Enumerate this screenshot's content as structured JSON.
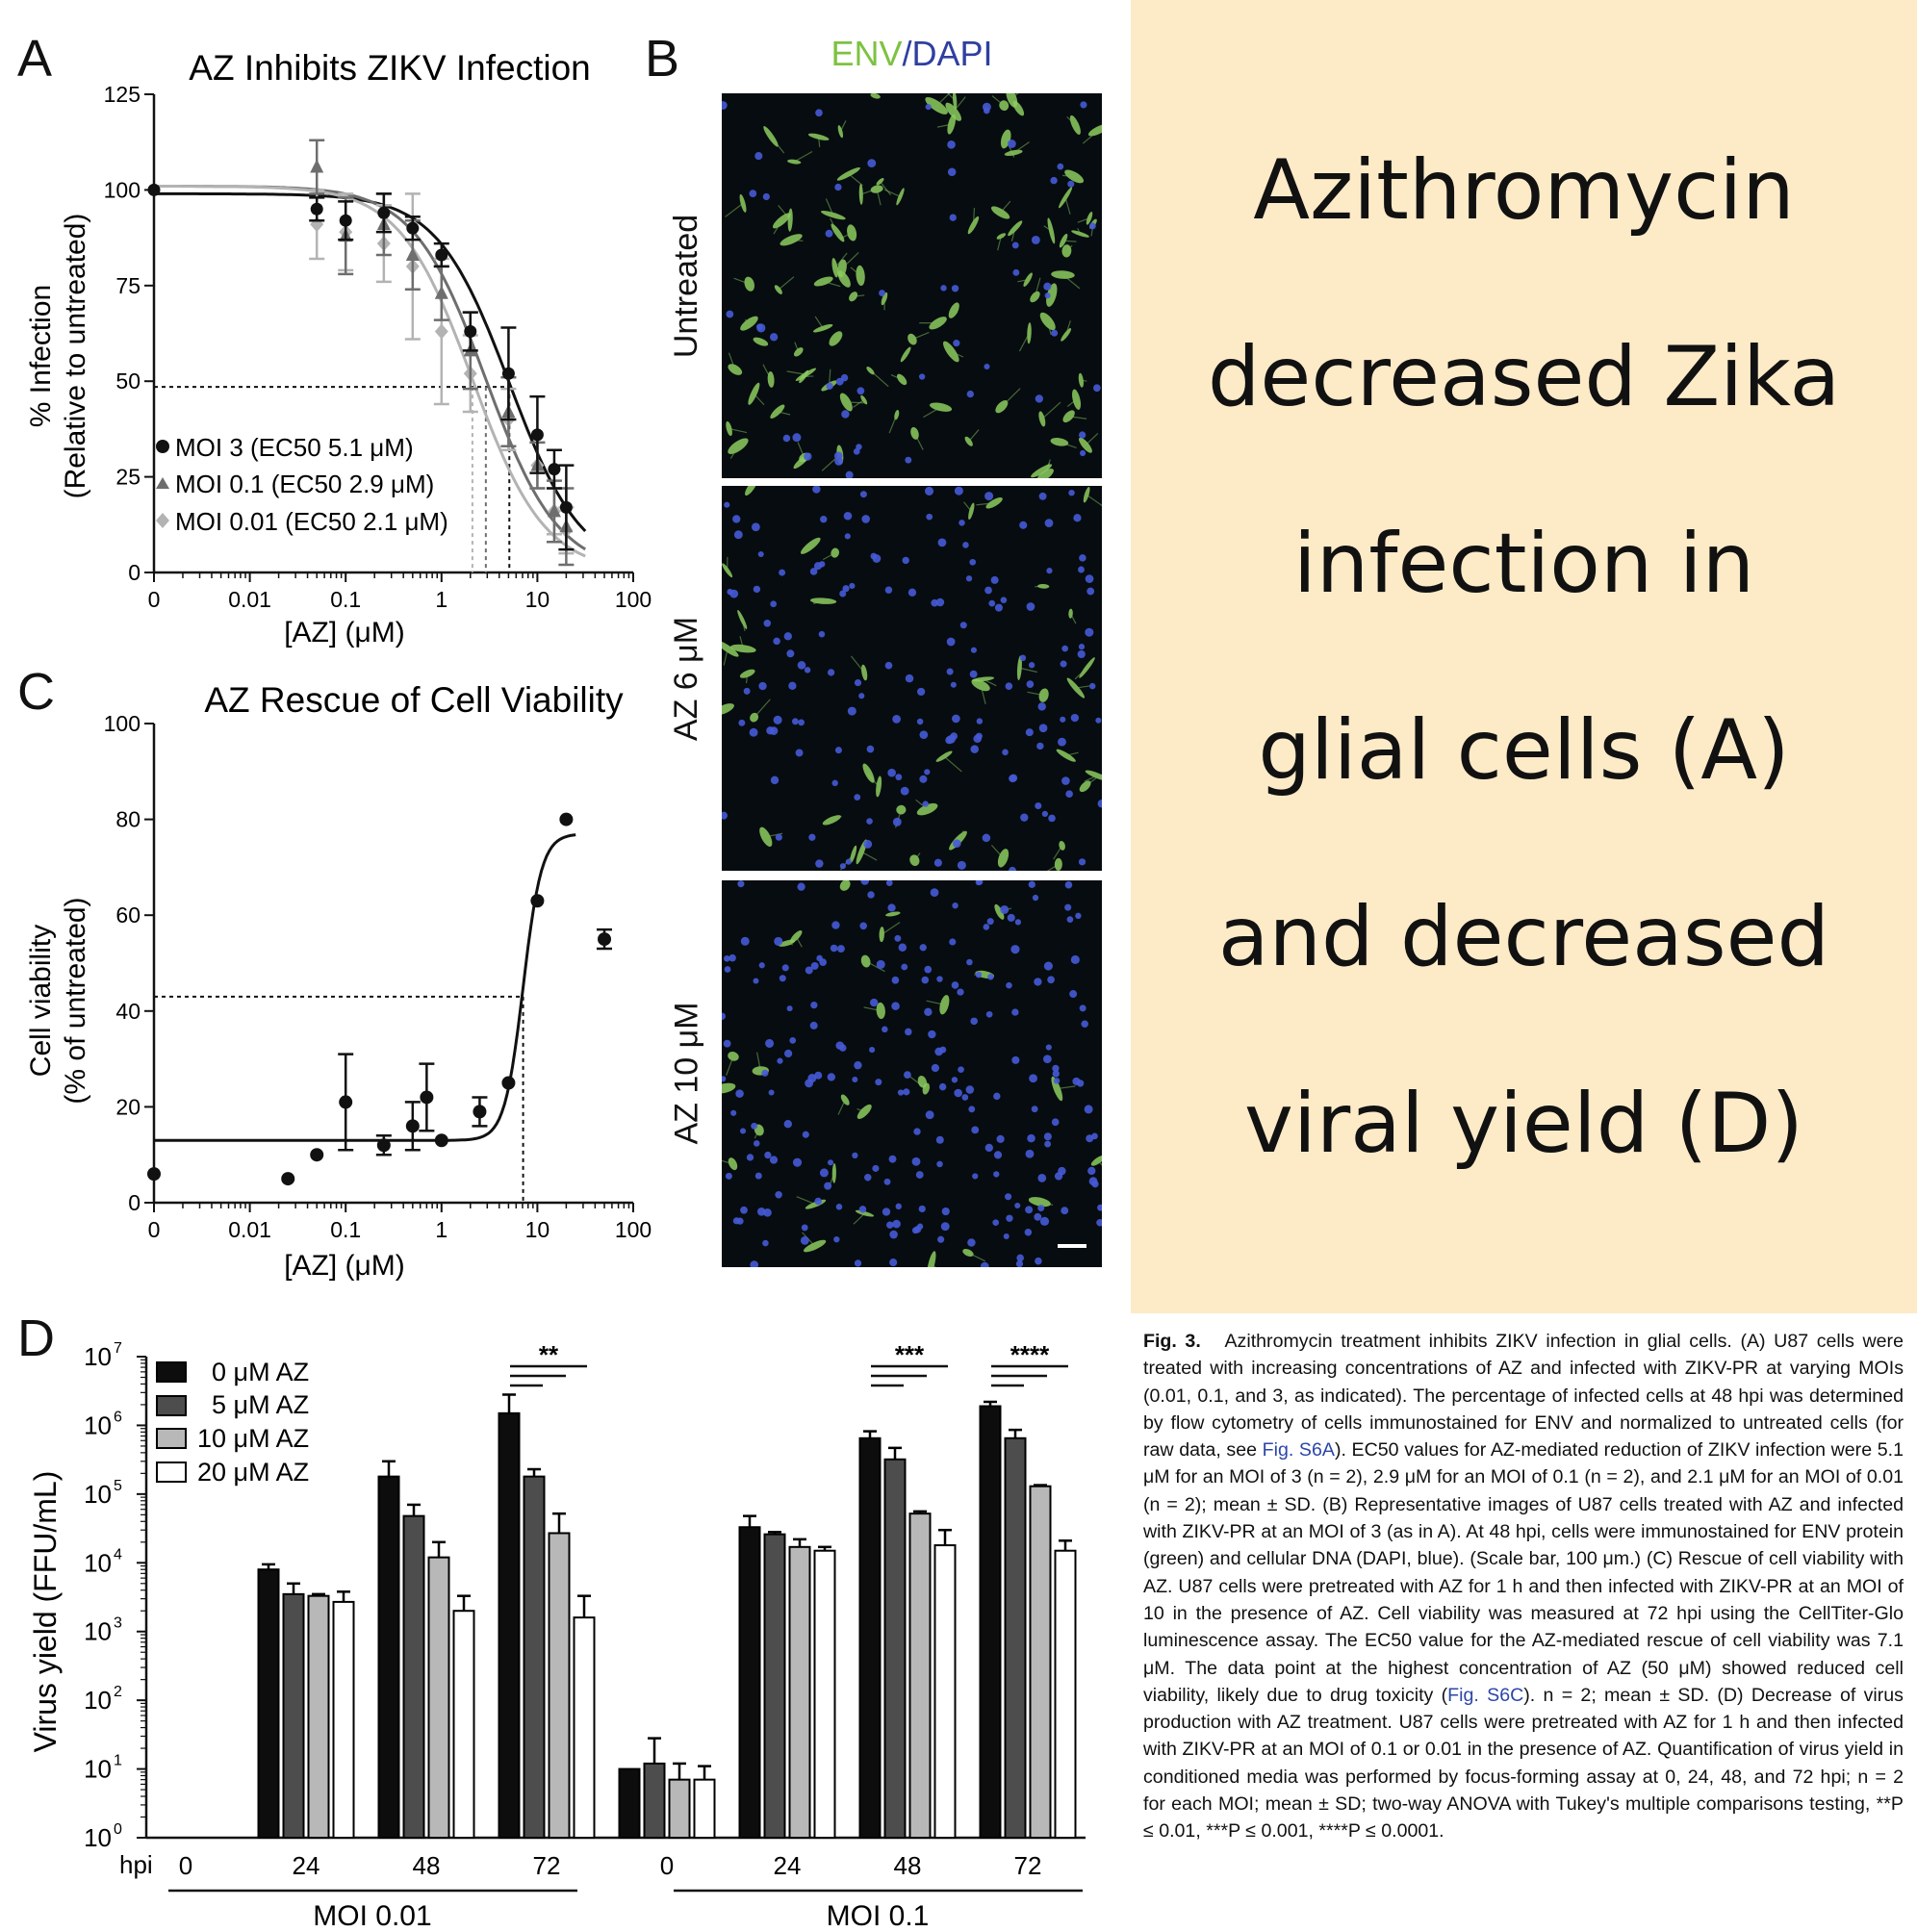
{
  "panel_letters": {
    "a": "A",
    "b": "B",
    "c": "C",
    "d": "D"
  },
  "panel_b": {
    "header": {
      "env": "ENV",
      "slash": "/",
      "dapi": "DAPI"
    },
    "rows": [
      "Untreated",
      "AZ 6 μM",
      "AZ 10 μM"
    ],
    "env_color": "#7dc242",
    "dapi_color": "#2f3fa0"
  },
  "banner": {
    "lines": [
      "Azithromycin",
      "decreased Zika",
      "infection in",
      "glial cells (A)",
      "and decreased",
      "viral yield (D)"
    ],
    "background": "#fdebc8"
  },
  "caption": {
    "fig": "Fig. 3.",
    "text1": "Azithromycin treatment inhibits ZIKV infection in glial cells. (A) U87 cells were treated with increasing concentrations of AZ and infected with ZIKV-PR at varying MOIs (0.01, 0.1, and 3, as indicated). The percentage of infected cells at 48 hpi was determined by flow cytometry of cells immunostained for ENV and normalized to untreated cells (for raw data, see ",
    "link1": "Fig. S6A",
    "text2": "). EC50 values for AZ-mediated reduction of ZIKV infection were 5.1 μM for an MOI of 3 (n = 2), 2.9 μM for an MOI of 0.1 (n = 2), and 2.1 μM for an MOI of 0.01 (n = 2); mean ± SD. (B) Representative images of U87 cells treated with AZ and infected with ZIKV-PR at an MOI of 3 (as in A). At 48 hpi, cells were immunostained for ENV protein (green) and cellular DNA (DAPI, blue). (Scale bar, 100 μm.) (C) Rescue of cell viability with AZ. U87 cells were pretreated with AZ for 1 h and then infected with ZIKV-PR at an MOI of 10 in the presence of AZ. Cell viability was measured at 72 hpi using the CellTiter-Glo luminescence assay. The EC50 value for the AZ-mediated rescue of cell viability was 7.1 μM. The data point at the highest concentration of AZ (50 μM) showed reduced cell viability, likely due to drug toxicity (",
    "link2": "Fig. S6C",
    "text3": "). n = 2; mean ± SD. (D) Decrease of virus production with AZ treatment. U87 cells were pretreated with AZ for 1 h and then infected with ZIKV-PR at an MOI of 0.1 or 0.01 in the presence of AZ. Quantification of virus yield in conditioned media was performed by focus-forming assay at 0, 24, 48, and 72 hpi; n = 2 for each MOI; mean ± SD; two-way ANOVA with Tukey's multiple comparisons testing, **P ≤ 0.01, ***P ≤ 0.001, ****P ≤ 0.0001."
  },
  "chart_data": [
    {
      "id": "A",
      "type": "line",
      "title": "AZ Inhibits ZIKV Infection",
      "xlabel": "[AZ] (μM)",
      "ylabel": "% Infection",
      "ylabel2": "(Relative to untreated)",
      "xscale": "log",
      "x_ticks": [
        "0",
        "0.01",
        "0.1",
        "1",
        "10",
        "100"
      ],
      "y_ticks": [
        0,
        25,
        50,
        75,
        100,
        125
      ],
      "ylim": [
        0,
        125
      ],
      "ec50_line_y": 48.5,
      "series": [
        {
          "name": "MOI 3 (EC50 5.1 μM)",
          "marker": "circle",
          "color": "#111111",
          "ec50": 5.1,
          "x": [
            0.05,
            0.1,
            0.25,
            0.5,
            1,
            2,
            5,
            10,
            15,
            20
          ],
          "y": [
            95,
            92,
            94,
            90,
            83,
            63,
            52,
            36,
            27,
            17
          ],
          "err": [
            3,
            5,
            5,
            3,
            3,
            5,
            12,
            10,
            5,
            11
          ]
        },
        {
          "name": "MOI 0.1 (EC50 2.9 μM)",
          "marker": "triangle",
          "color": "#6e6e6e",
          "ec50": 2.9,
          "x": [
            0.05,
            0.1,
            0.25,
            0.5,
            1,
            2,
            5,
            10,
            15,
            20
          ],
          "y": [
            106,
            88,
            91,
            83,
            73,
            58,
            42,
            28,
            16,
            12
          ],
          "err": [
            7,
            10,
            8,
            9,
            7,
            10,
            9,
            6,
            8,
            10
          ]
        },
        {
          "name": "MOI 0.01 (EC50 2.1 μM)",
          "marker": "diamond",
          "color": "#b3b3b3",
          "ec50": 2.1,
          "x": [
            0.05,
            0.1,
            0.25,
            0.5,
            1,
            2,
            5,
            10,
            15,
            20
          ],
          "y": [
            91,
            89,
            86,
            80,
            63,
            52,
            40,
            28,
            16,
            11
          ],
          "err": [
            9,
            10,
            10,
            19,
            19,
            10,
            8,
            6,
            6,
            6
          ]
        }
      ]
    },
    {
      "id": "C",
      "type": "scatter",
      "title": "AZ Rescue of Cell Viability",
      "xlabel": "[AZ] (μM)",
      "ylabel": "Cell viability",
      "ylabel2": "(% of untreated)",
      "xscale": "log",
      "x_ticks": [
        "0",
        "0.01",
        "0.1",
        "1",
        "10",
        "100"
      ],
      "y_ticks": [
        0,
        20,
        40,
        60,
        80,
        100
      ],
      "ylim": [
        0,
        100
      ],
      "ec50": 7.1,
      "ec50_line_y": 43,
      "fit": {
        "bottom": 13,
        "top": 77,
        "hill": 4.5
      },
      "points": {
        "x": [
          0.001,
          0.025,
          0.05,
          0.1,
          0.25,
          0.5,
          0.7,
          1,
          2.5,
          5,
          10,
          20,
          50
        ],
        "y": [
          6,
          5,
          10,
          21,
          12,
          16,
          22,
          13,
          19,
          25,
          63,
          80,
          55
        ],
        "err": [
          0,
          0,
          0,
          10,
          2,
          5,
          7,
          0,
          3,
          0,
          0,
          0,
          2
        ]
      }
    },
    {
      "id": "D",
      "type": "bar",
      "ylabel": "Virus yield (FFU/mL)",
      "yscale": "log",
      "y_tick_exponents": [
        0,
        1,
        2,
        3,
        4,
        5,
        6,
        7
      ],
      "x_prefix": "hpi",
      "categories": [
        "0",
        "24",
        "48",
        "72",
        "0",
        "24",
        "48",
        "72"
      ],
      "groups": [
        "MOI 0.01",
        "MOI 0.1"
      ],
      "series": [
        {
          "name": "0 μM AZ",
          "color": "#0d0d0d",
          "values": [
            null,
            8000,
            180000,
            1500000,
            10,
            33000,
            650000,
            1900000
          ],
          "err_high": [
            null,
            9500,
            300000,
            2800000,
            10,
            48000,
            820000,
            2200000
          ]
        },
        {
          "name": "5 μM AZ",
          "color": "#4d4d4d",
          "values": [
            null,
            3500,
            48000,
            180000,
            12,
            26000,
            320000,
            650000
          ],
          "err_high": [
            null,
            5000,
            70000,
            230000,
            28,
            28000,
            470000,
            860000
          ]
        },
        {
          "name": "10 μM AZ",
          "color": "#b8b8b8",
          "values": [
            null,
            3300,
            12000,
            27000,
            7,
            17000,
            52000,
            130000
          ],
          "err_high": [
            null,
            3500,
            20000,
            52000,
            12,
            22000,
            56000,
            135000
          ]
        },
        {
          "name": "20 μM AZ",
          "color": "#ffffff",
          "values": [
            null,
            2700,
            2000,
            1600,
            7,
            15000,
            18000,
            15000
          ],
          "err_high": [
            null,
            3800,
            3300,
            3300,
            11,
            17000,
            30000,
            21000
          ]
        }
      ],
      "significance": [
        {
          "label": "**",
          "category_index": 3
        },
        {
          "label": "***",
          "category_index": 6
        },
        {
          "label": "****",
          "category_index": 7
        }
      ]
    }
  ]
}
